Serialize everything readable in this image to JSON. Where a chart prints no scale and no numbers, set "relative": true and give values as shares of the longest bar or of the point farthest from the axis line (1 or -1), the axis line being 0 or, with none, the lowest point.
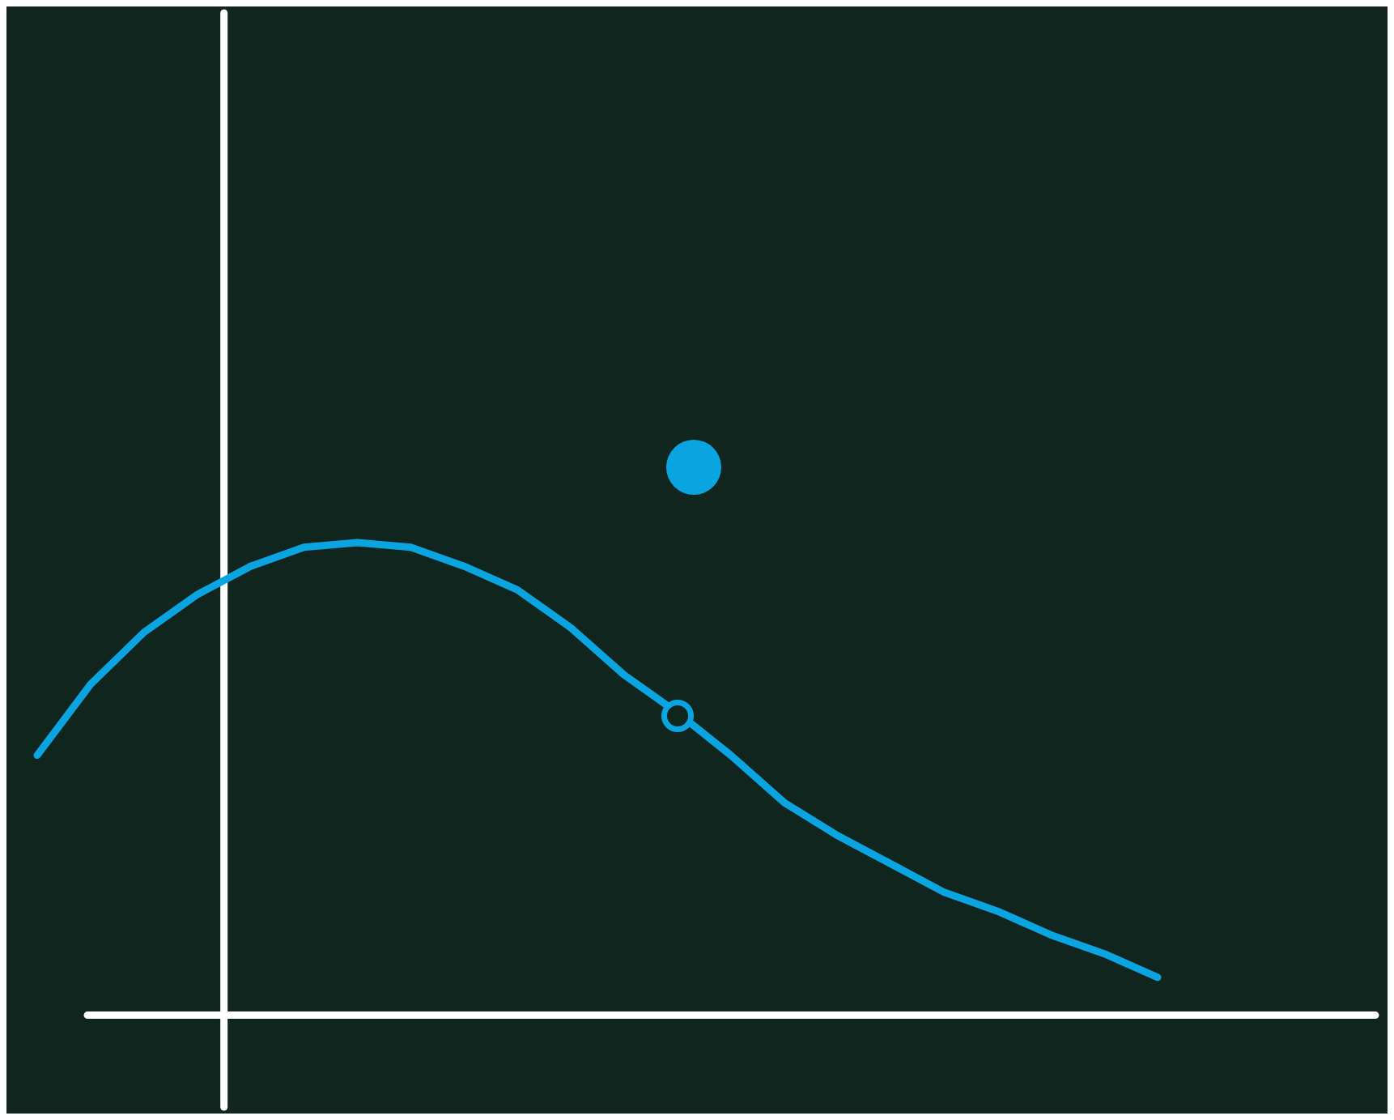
{
  "chart_data": {
    "type": "line",
    "relative": true,
    "legend": false,
    "categories": [
      null,
      null,
      null,
      null,
      null,
      null,
      null,
      null,
      null,
      null,
      null,
      null,
      null,
      null,
      null,
      null,
      null,
      null,
      null,
      null,
      null,
      null
    ],
    "series": [
      {
        "type": "line",
        "color": "#0aa5e0",
        "marker": "none",
        "values": [
          0.55,
          0.7,
          0.81,
          0.89,
          0.95,
          0.99,
          1,
          0.99,
          0.95,
          0.9,
          0.82,
          0.72,
          0.64,
          0.55,
          0.45,
          0.38,
          0.32,
          0.26,
          0.22,
          0.17,
          0.13,
          0.08
        ]
      }
    ]
  }
}
